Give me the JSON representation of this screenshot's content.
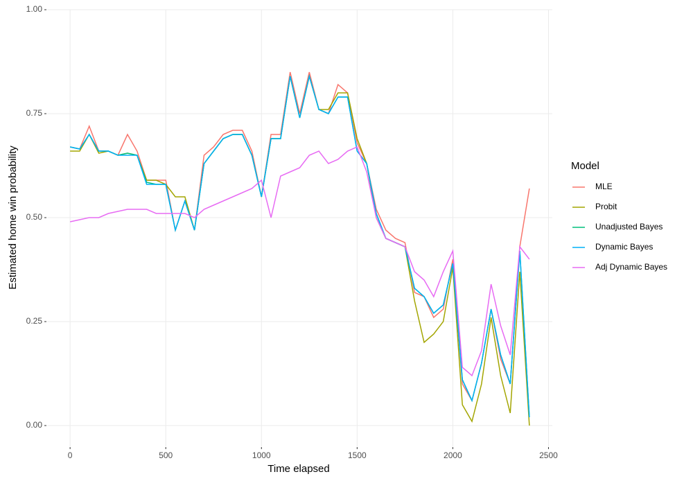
{
  "chart_data": {
    "type": "line",
    "x_label": "Time elapsed",
    "y_label": "Estimated home win probability",
    "legend_title": "Model",
    "legend": "right",
    "grid": true,
    "xlim": [
      -120,
      2520
    ],
    "ylim": [
      -0.05,
      1.0
    ],
    "xticks": [
      0,
      500,
      1000,
      1500,
      2000,
      2500
    ],
    "yticks": [
      {
        "value": 0,
        "label": "0.00"
      },
      {
        "value": 0.25,
        "label": "0.25"
      },
      {
        "value": 0.5,
        "label": "0.50"
      },
      {
        "value": 0.75,
        "label": "0.75"
      },
      {
        "value": 1,
        "label": "1.00"
      }
    ],
    "x": [
      0,
      50,
      100,
      150,
      200,
      250,
      300,
      350,
      400,
      450,
      500,
      550,
      600,
      650,
      700,
      750,
      800,
      850,
      900,
      950,
      1000,
      1050,
      1100,
      1150,
      1200,
      1250,
      1300,
      1350,
      1400,
      1450,
      1500,
      1550,
      1600,
      1650,
      1700,
      1750,
      1800,
      1850,
      1900,
      1950,
      2000,
      2050,
      2100,
      2150,
      2200,
      2250,
      2300,
      2350,
      2400
    ],
    "series": [
      {
        "name": "MLE",
        "color": "#F8766D",
        "values": [
          0.67,
          0.665,
          0.72,
          0.66,
          0.66,
          0.65,
          0.7,
          0.66,
          0.59,
          0.59,
          0.59,
          0.47,
          0.54,
          0.47,
          0.65,
          0.67,
          0.7,
          0.71,
          0.71,
          0.66,
          0.55,
          0.7,
          0.7,
          0.85,
          0.75,
          0.85,
          0.76,
          0.75,
          0.82,
          0.8,
          0.68,
          0.63,
          0.52,
          0.47,
          0.45,
          0.44,
          0.32,
          0.31,
          0.26,
          0.28,
          0.4,
          0.1,
          0.06,
          0.15,
          0.28,
          0.16,
          0.1,
          0.43,
          0.57
        ]
      },
      {
        "name": "Probit",
        "color": "#A3A500",
        "values": [
          0.66,
          0.66,
          0.7,
          0.655,
          0.66,
          0.65,
          0.655,
          0.65,
          0.59,
          0.59,
          0.58,
          0.55,
          0.55,
          0.47,
          0.63,
          0.66,
          0.69,
          0.7,
          0.7,
          0.65,
          0.55,
          0.69,
          0.69,
          0.84,
          0.74,
          0.84,
          0.76,
          0.76,
          0.8,
          0.8,
          0.69,
          0.63,
          0.5,
          0.45,
          0.44,
          0.43,
          0.3,
          0.2,
          0.22,
          0.25,
          0.38,
          0.05,
          0.01,
          0.1,
          0.26,
          0.12,
          0.03,
          0.37,
          0.0
        ]
      },
      {
        "name": "Unadjusted Bayes",
        "color": "#00BF7D",
        "values": [
          0.67,
          0.665,
          0.7,
          0.66,
          0.66,
          0.65,
          0.655,
          0.65,
          0.585,
          0.58,
          0.58,
          0.47,
          0.54,
          0.47,
          0.63,
          0.66,
          0.69,
          0.7,
          0.7,
          0.65,
          0.55,
          0.69,
          0.69,
          0.84,
          0.74,
          0.84,
          0.76,
          0.75,
          0.79,
          0.79,
          0.66,
          0.63,
          0.51,
          0.45,
          0.44,
          0.43,
          0.33,
          0.31,
          0.27,
          0.29,
          0.39,
          0.11,
          0.06,
          0.15,
          0.28,
          0.17,
          0.1,
          0.42,
          0.02
        ]
      },
      {
        "name": "Dynamic Bayes",
        "color": "#00B0F6",
        "values": [
          0.67,
          0.665,
          0.7,
          0.66,
          0.66,
          0.65,
          0.65,
          0.65,
          0.58,
          0.58,
          0.58,
          0.47,
          0.54,
          0.47,
          0.63,
          0.66,
          0.69,
          0.7,
          0.7,
          0.65,
          0.55,
          0.69,
          0.69,
          0.84,
          0.74,
          0.84,
          0.76,
          0.75,
          0.79,
          0.79,
          0.66,
          0.63,
          0.51,
          0.45,
          0.44,
          0.43,
          0.33,
          0.31,
          0.27,
          0.29,
          0.39,
          0.11,
          0.06,
          0.15,
          0.28,
          0.17,
          0.1,
          0.42,
          0.02
        ]
      },
      {
        "name": "Adj Dynamic Bayes",
        "color": "#E76BF3",
        "values": [
          0.49,
          0.495,
          0.5,
          0.5,
          0.51,
          0.515,
          0.52,
          0.52,
          0.52,
          0.51,
          0.51,
          0.51,
          0.51,
          0.5,
          0.52,
          0.53,
          0.54,
          0.55,
          0.56,
          0.57,
          0.59,
          0.5,
          0.6,
          0.61,
          0.62,
          0.65,
          0.66,
          0.63,
          0.64,
          0.66,
          0.67,
          0.61,
          0.5,
          0.45,
          0.44,
          0.43,
          0.37,
          0.35,
          0.31,
          0.37,
          0.42,
          0.14,
          0.12,
          0.18,
          0.34,
          0.24,
          0.17,
          0.43,
          0.4
        ]
      }
    ]
  }
}
